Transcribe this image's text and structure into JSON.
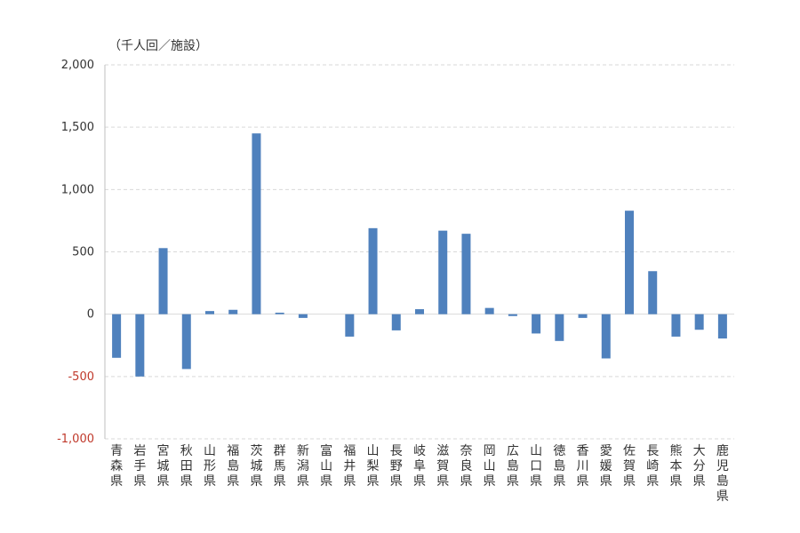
{
  "chart_data": {
    "type": "bar",
    "unit_label": "（千人回／施設）",
    "ylim": [
      -1000,
      2000
    ],
    "yticks": [
      "2,000",
      "1,500",
      "1,000",
      "500",
      "0",
      "-500",
      "-1,000"
    ],
    "ytick_values": [
      2000,
      1500,
      1000,
      500,
      0,
      -500,
      -1000
    ],
    "grid": true,
    "bar_color": "#4f81bd",
    "negative_tick_color": "#c0392b",
    "grid_color": "#d9d9d9",
    "categories": [
      "青森県",
      "岩手県",
      "宮城県",
      "秋田県",
      "山形県",
      "福島県",
      "茨城県",
      "群馬県",
      "新潟県",
      "富山県",
      "福井県",
      "山梨県",
      "長野県",
      "岐阜県",
      "滋賀県",
      "奈良県",
      "岡山県",
      "広島県",
      "山口県",
      "徳島県",
      "香川県",
      "愛媛県",
      "佐賀県",
      "長崎県",
      "熊本県",
      "大分県",
      "鹿児島県"
    ],
    "values": [
      -350,
      -500,
      530,
      -440,
      25,
      35,
      1450,
      12,
      -30,
      0,
      -180,
      690,
      -130,
      40,
      670,
      645,
      50,
      -15,
      -155,
      -215,
      -30,
      -355,
      830,
      345,
      -180,
      -125,
      -195
    ]
  }
}
